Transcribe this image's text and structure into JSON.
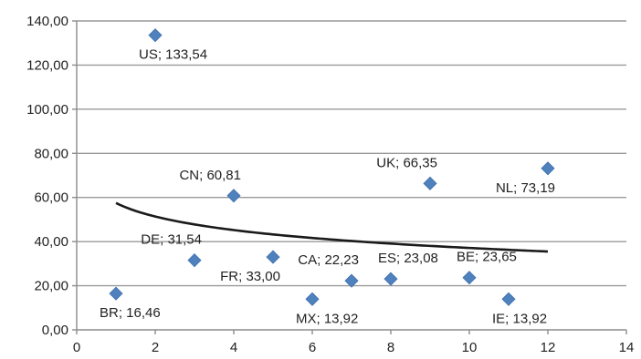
{
  "chart_data": {
    "type": "scatter",
    "xlim": [
      0,
      14
    ],
    "ylim": [
      0,
      140
    ],
    "x_ticks": [
      0,
      2,
      4,
      6,
      8,
      10,
      12,
      14
    ],
    "x_tick_labels": [
      "0",
      "2",
      "4",
      "6",
      "8",
      "10",
      "12",
      "14"
    ],
    "y_ticks": [
      0,
      20,
      40,
      60,
      80,
      100,
      120,
      140
    ],
    "y_tick_labels": [
      "0,00",
      "20,00",
      "40,00",
      "60,00",
      "80,00",
      "100,00",
      "120,00",
      "140,00"
    ],
    "grid": "horizontal",
    "marker_color": "#4f81bd",
    "trendline": {
      "type": "logarithmic",
      "color": "#1a1a1a",
      "y_at_x1": 57.5,
      "y_at_x12": 35.5
    },
    "points": [
      {
        "x": 1,
        "y": 16.46,
        "label": "BR; 16,46",
        "label_pos": "below-right"
      },
      {
        "x": 2,
        "y": 133.54,
        "label": "US; 133,54",
        "label_pos": "below-right"
      },
      {
        "x": 3,
        "y": 31.54,
        "label": "DE; 31,54",
        "label_pos": "above-left"
      },
      {
        "x": 4,
        "y": 60.81,
        "label": "CN; 60,81",
        "label_pos": "above-left"
      },
      {
        "x": 5,
        "y": 33.0,
        "label": "FR; 33,00",
        "label_pos": "below-left"
      },
      {
        "x": 6,
        "y": 13.92,
        "label": "MX; 13,92",
        "label_pos": "below-right"
      },
      {
        "x": 7,
        "y": 22.23,
        "label": "CA; 22,23",
        "label_pos": "above-left"
      },
      {
        "x": 8,
        "y": 23.08,
        "label": "ES; 23,08",
        "label_pos": "above-right"
      },
      {
        "x": 9,
        "y": 66.35,
        "label": "UK; 66,35",
        "label_pos": "above-left"
      },
      {
        "x": 10,
        "y": 23.65,
        "label": "BE; 23,65",
        "label_pos": "above-right"
      },
      {
        "x": 11,
        "y": 13.92,
        "label": "IE; 13,92",
        "label_pos": "below-right"
      },
      {
        "x": 12,
        "y": 73.19,
        "label": "NL; 73,19",
        "label_pos": "below-left"
      }
    ]
  }
}
